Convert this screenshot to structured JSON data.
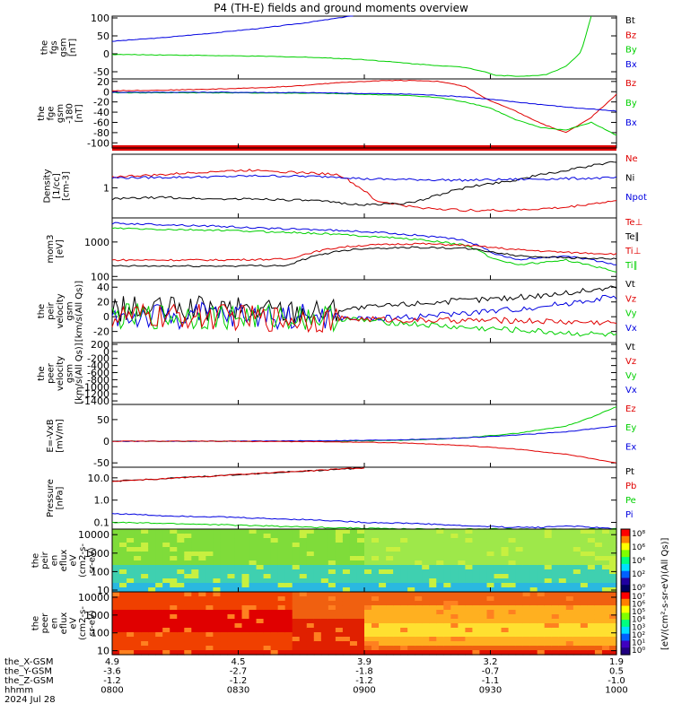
{
  "title": "P4 (TH-E) fields and ground moments overview",
  "colors": {
    "black": "#000000",
    "red": "#e00000",
    "green": "#00d000",
    "blue": "#0000e0"
  },
  "chart_data": [
    {
      "type": "line",
      "id": "p1",
      "ylabel": [
        "the",
        "fgs",
        "gsm",
        "[nT]"
      ],
      "yticks": [
        100,
        50,
        0,
        -50
      ],
      "ylim": [
        -70,
        105
      ],
      "legend": [
        {
          "label": "Bt",
          "color": "black"
        },
        {
          "label": "Bz",
          "color": "red"
        },
        {
          "label": "By",
          "color": "green"
        },
        {
          "label": "Bx",
          "color": "blue"
        }
      ],
      "series": [
        {
          "color": "blue",
          "x": [
            0,
            0.1,
            0.2,
            0.3,
            0.38,
            0.45,
            0.48
          ],
          "y": [
            35,
            45,
            58,
            72,
            86,
            100,
            108
          ]
        },
        {
          "color": "green",
          "x": [
            0,
            0.1,
            0.2,
            0.3,
            0.4,
            0.5,
            0.6,
            0.7,
            0.74,
            0.76,
            0.8,
            0.83,
            0.86,
            0.9,
            0.93,
            0.95
          ],
          "y": [
            -2,
            -3,
            -5,
            -7,
            -10,
            -16,
            -28,
            -38,
            -50,
            -60,
            -62,
            -62,
            -58,
            -35,
            5,
            105
          ]
        }
      ]
    },
    {
      "type": "line",
      "id": "p2",
      "ylabel": [
        "the",
        "fge",
        "gsm",
        "-180",
        "[nT]"
      ],
      "yticks": [
        20,
        0,
        -20,
        -40,
        -60,
        -80,
        -100
      ],
      "ylim": [
        -110,
        25
      ],
      "legend": [
        {
          "label": "Bz",
          "color": "red"
        },
        {
          "label": "By",
          "color": "green"
        },
        {
          "label": "Bx",
          "color": "blue"
        }
      ],
      "series": [
        {
          "color": "red",
          "x": [
            0,
            0.1,
            0.2,
            0.3,
            0.38,
            0.45,
            0.55,
            0.6,
            0.65,
            0.7,
            0.75,
            0.8,
            0.85,
            0.9,
            0.95,
            1.0
          ],
          "y": [
            2,
            3,
            5,
            8,
            12,
            18,
            22,
            22,
            20,
            10,
            -18,
            -38,
            -62,
            -80,
            -50,
            -5
          ]
        },
        {
          "color": "green",
          "x": [
            0,
            0.2,
            0.4,
            0.5,
            0.6,
            0.65,
            0.7,
            0.75,
            0.8,
            0.85,
            0.9,
            0.95,
            1.0
          ],
          "y": [
            -2,
            -2,
            -3,
            -5,
            -8,
            -12,
            -20,
            -32,
            -55,
            -70,
            -75,
            -60,
            -85
          ]
        },
        {
          "color": "blue",
          "x": [
            0,
            0.2,
            0.4,
            0.6,
            0.7,
            0.8,
            0.9,
            1.0
          ],
          "y": [
            -1,
            -1,
            -2,
            -5,
            -10,
            -20,
            -30,
            -38
          ]
        }
      ]
    },
    {
      "type": "line",
      "id": "p3",
      "yscale": "log",
      "ylabel": [
        "Density",
        "[1/cc]",
        "[cm-3]"
      ],
      "yticks": [
        1
      ],
      "ylim": [
        0.2,
        6
      ],
      "legend": [
        {
          "label": "Ne",
          "color": "red"
        },
        {
          "label": "Ni",
          "color": "black"
        },
        {
          "label": "Npot",
          "color": "blue"
        }
      ],
      "series": [
        {
          "color": "red",
          "x": [
            0,
            0.1,
            0.2,
            0.3,
            0.35,
            0.4,
            0.45,
            0.48,
            0.52,
            0.6,
            0.7,
            0.8,
            0.9,
            1.0
          ],
          "y": [
            1.8,
            2.0,
            2.4,
            2.6,
            2.3,
            2.2,
            2.0,
            1.2,
            0.5,
            0.35,
            0.3,
            0.3,
            0.35,
            0.5
          ]
        },
        {
          "color": "black",
          "x": [
            0,
            0.1,
            0.2,
            0.3,
            0.4,
            0.5,
            0.6,
            0.65,
            0.7,
            0.8,
            0.9,
            1.0
          ],
          "y": [
            0.55,
            0.6,
            0.55,
            0.55,
            0.5,
            0.4,
            0.45,
            0.7,
            1.0,
            1.5,
            2.5,
            4.0
          ]
        },
        {
          "color": "blue",
          "x": [
            0,
            0.2,
            0.3,
            0.45,
            0.5,
            0.7,
            1.0
          ],
          "y": [
            1.7,
            1.8,
            1.9,
            1.8,
            1.6,
            1.5,
            1.7
          ]
        }
      ]
    },
    {
      "type": "line",
      "id": "p4",
      "yscale": "log",
      "ylabel": [
        "mom3",
        "[eV]"
      ],
      "yticks": [
        1000,
        100
      ],
      "ylim": [
        80,
        5000
      ],
      "legend": [
        {
          "label": "Te⊥",
          "color": "red"
        },
        {
          "label": "Te∥",
          "color": "black"
        },
        {
          "label": "Ti⊥",
          "color": "red"
        },
        {
          "label": "Ti∥",
          "color": "green"
        }
      ],
      "series": [
        {
          "color": "blue",
          "x": [
            0,
            0.1,
            0.2,
            0.3,
            0.4,
            0.5,
            0.6,
            0.7,
            0.75,
            0.8,
            0.85,
            0.9,
            0.95,
            1.0
          ],
          "y": [
            3500,
            3200,
            2900,
            2500,
            2300,
            2000,
            1600,
            1100,
            500,
            300,
            350,
            400,
            300,
            220
          ]
        },
        {
          "color": "green",
          "x": [
            0,
            0.1,
            0.2,
            0.3,
            0.4,
            0.5,
            0.6,
            0.7,
            0.75,
            0.8,
            0.85,
            0.9,
            0.95,
            1.0
          ],
          "y": [
            2500,
            2300,
            2200,
            2000,
            1800,
            1500,
            1200,
            800,
            350,
            220,
            250,
            300,
            200,
            140
          ]
        },
        {
          "color": "red",
          "x": [
            0,
            0.2,
            0.35,
            0.45,
            0.5,
            0.6,
            0.7,
            0.8,
            0.9,
            1.0
          ],
          "y": [
            300,
            300,
            320,
            700,
            800,
            900,
            800,
            600,
            500,
            450
          ]
        },
        {
          "color": "black",
          "x": [
            0,
            0.2,
            0.35,
            0.45,
            0.5,
            0.6,
            0.7,
            0.8,
            0.9,
            1.0
          ],
          "y": [
            200,
            200,
            210,
            550,
            650,
            700,
            650,
            400,
            350,
            320
          ]
        }
      ]
    },
    {
      "type": "line",
      "id": "p5",
      "ylabel": [
        "the",
        "peir",
        "velocity",
        "gsm",
        "[km/s(All Qs)]"
      ],
      "yticks": [
        40,
        20,
        0,
        -20
      ],
      "ylim": [
        -35,
        50
      ],
      "legend": [
        {
          "label": "Vt",
          "color": "black"
        },
        {
          "label": "Vz",
          "color": "red"
        },
        {
          "label": "Vy",
          "color": "green"
        },
        {
          "label": "Vx",
          "color": "blue"
        }
      ],
      "series": [
        {
          "color": "black",
          "x": [
            0,
            0.1,
            0.2,
            0.3,
            0.4,
            0.5,
            0.6,
            0.7,
            0.8,
            0.9,
            1.0
          ],
          "y": [
            10,
            10,
            10,
            10,
            8,
            12,
            18,
            22,
            26,
            32,
            40
          ]
        },
        {
          "color": "blue",
          "x": [
            0,
            0.1,
            0.2,
            0.3,
            0.4,
            0.5,
            0.6,
            0.7,
            0.8,
            0.9,
            1.0
          ],
          "y": [
            0,
            0,
            2,
            2,
            0,
            -3,
            0,
            5,
            10,
            18,
            28
          ]
        },
        {
          "color": "green",
          "x": [
            0,
            0.1,
            0.2,
            0.3,
            0.4,
            0.5,
            0.6,
            0.7,
            0.8,
            0.9,
            1.0
          ],
          "y": [
            0,
            0,
            0,
            0,
            0,
            -5,
            -10,
            -15,
            -18,
            -22,
            -25
          ]
        },
        {
          "color": "red",
          "x": [
            0,
            0.1,
            0.2,
            0.3,
            0.4,
            0.5,
            0.6,
            0.7,
            0.8,
            0.9,
            1.0
          ],
          "y": [
            0,
            0,
            0,
            -2,
            -3,
            -3,
            -5,
            -5,
            -5,
            -7,
            -8
          ]
        }
      ]
    },
    {
      "type": "line",
      "id": "p6",
      "ylabel": [
        "the",
        "peer",
        "velocity",
        "gsm",
        "[km/s(All Qs)]"
      ],
      "yticks": [
        200,
        0,
        -200,
        -400,
        -600,
        -800,
        -1000,
        -1200,
        -1400
      ],
      "ylim": [
        -1500,
        250
      ],
      "legend": [
        {
          "label": "Vt",
          "color": "black"
        },
        {
          "label": "Vz",
          "color": "red"
        },
        {
          "label": "Vy",
          "color": "green"
        },
        {
          "label": "Vx",
          "color": "blue"
        }
      ],
      "series": []
    },
    {
      "type": "line",
      "id": "p7",
      "ylabel": [
        "E=-VxB",
        "[mV/m]"
      ],
      "yticks": [
        50,
        0,
        -50
      ],
      "ylim": [
        -60,
        85
      ],
      "legend": [
        {
          "label": "Ez",
          "color": "red"
        },
        {
          "label": "Ey",
          "color": "green"
        },
        {
          "label": "Ex",
          "color": "blue"
        }
      ],
      "series": [
        {
          "color": "green",
          "x": [
            0,
            0.2,
            0.4,
            0.5,
            0.6,
            0.7,
            0.8,
            0.9,
            0.95,
            1.0
          ],
          "y": [
            0,
            0,
            0,
            1,
            3,
            8,
            18,
            35,
            55,
            80
          ]
        },
        {
          "color": "blue",
          "x": [
            0,
            0.2,
            0.4,
            0.5,
            0.6,
            0.7,
            0.8,
            0.9,
            1.0
          ],
          "y": [
            0,
            0,
            1,
            2,
            4,
            8,
            14,
            22,
            35
          ]
        },
        {
          "color": "red",
          "x": [
            0,
            0.2,
            0.4,
            0.5,
            0.6,
            0.7,
            0.8,
            0.9,
            1.0
          ],
          "y": [
            0,
            0,
            -1,
            -2,
            -5,
            -10,
            -18,
            -30,
            -50
          ]
        }
      ]
    },
    {
      "type": "line",
      "id": "p8",
      "yscale": "log",
      "ylabel": [
        "Pressure",
        "[nPa]"
      ],
      "yticks": [
        10.0,
        1.0,
        0.1
      ],
      "yticklabels": [
        "10.0",
        "1.0",
        "0.1"
      ],
      "ylim": [
        0.05,
        30
      ],
      "legend": [
        {
          "label": "Pt",
          "color": "black"
        },
        {
          "label": "Pb",
          "color": "red"
        },
        {
          "label": "Pe",
          "color": "green"
        },
        {
          "label": "Pi",
          "color": "blue"
        }
      ],
      "series": [
        {
          "color": "black",
          "x": [
            0,
            0.1,
            0.2,
            0.3,
            0.4,
            0.5
          ],
          "y": [
            7,
            9,
            12,
            16,
            21,
            28
          ]
        },
        {
          "color": "red",
          "x": [
            0,
            0.1,
            0.2,
            0.3,
            0.4,
            0.5
          ],
          "y": [
            7,
            9,
            12,
            16,
            21,
            28
          ]
        },
        {
          "color": "blue",
          "x": [
            0,
            0.1,
            0.2,
            0.3,
            0.4,
            0.5,
            0.6,
            0.7,
            0.8,
            0.85,
            0.9,
            0.95,
            1.0
          ],
          "y": [
            0.25,
            0.2,
            0.18,
            0.15,
            0.13,
            0.1,
            0.09,
            0.07,
            0.06,
            0.06,
            0.07,
            0.06,
            0.05
          ]
        },
        {
          "color": "green",
          "x": [
            0,
            0.1,
            0.2,
            0.3,
            0.4,
            0.5,
            0.6,
            0.7,
            0.8,
            0.9,
            1.0
          ],
          "y": [
            0.1,
            0.09,
            0.08,
            0.07,
            0.06,
            0.055,
            0.05,
            0.05,
            0.05,
            0.05,
            0.05
          ]
        }
      ]
    },
    {
      "type": "heatmap",
      "id": "p9",
      "yscale": "log",
      "ylabel": [
        "the",
        "peir",
        "en",
        "eflux",
        "eV",
        "(cm2-s-",
        "sr-eV)"
      ],
      "yticks": [
        10000,
        1000,
        100,
        10
      ],
      "ylim": [
        8,
        20000
      ],
      "colorbar": {
        "ticks": [
          "10⁸",
          "10⁶",
          "10⁴",
          "10²",
          "10⁰"
        ],
        "label": "[eV/(cm²-s-sr-eV)]"
      }
    },
    {
      "type": "heatmap",
      "id": "p10",
      "yscale": "log",
      "ylabel": [
        "the",
        "peer",
        "en",
        "eflux",
        "eV",
        "(cm2-s-",
        "sr-eV)"
      ],
      "yticks": [
        10000,
        1000,
        100,
        10
      ],
      "ylim": [
        6,
        20000
      ],
      "colorbar": {
        "ticks": [
          "10⁷",
          "10⁶",
          "10⁵",
          "10⁴",
          "10³",
          "10²",
          "10¹",
          "10⁰"
        ],
        "label": "[eV/(cm²-s-sr-eV)(All Qs)]"
      }
    }
  ],
  "xaxis": {
    "ticks": [
      {
        "x": 0.0,
        "values": [
          "4.9",
          "-3.6",
          "-1.2",
          "0800"
        ]
      },
      {
        "x": 0.25,
        "values": [
          "4.5",
          "-2.7",
          "-1.2",
          "0830"
        ]
      },
      {
        "x": 0.5,
        "values": [
          "3.9",
          "-1.8",
          "-1.2",
          "0900"
        ]
      },
      {
        "x": 0.75,
        "values": [
          "3.2",
          "-0.7",
          "-1.1",
          "0930"
        ]
      },
      {
        "x": 1.0,
        "values": [
          "1.9",
          "0.5",
          "-1.0",
          "1000"
        ]
      }
    ],
    "row_labels": [
      "the_X-GSM",
      "the_Y-GSM",
      "the_Z-GSM",
      "hhmm"
    ],
    "date": "2024 Jul 28"
  }
}
